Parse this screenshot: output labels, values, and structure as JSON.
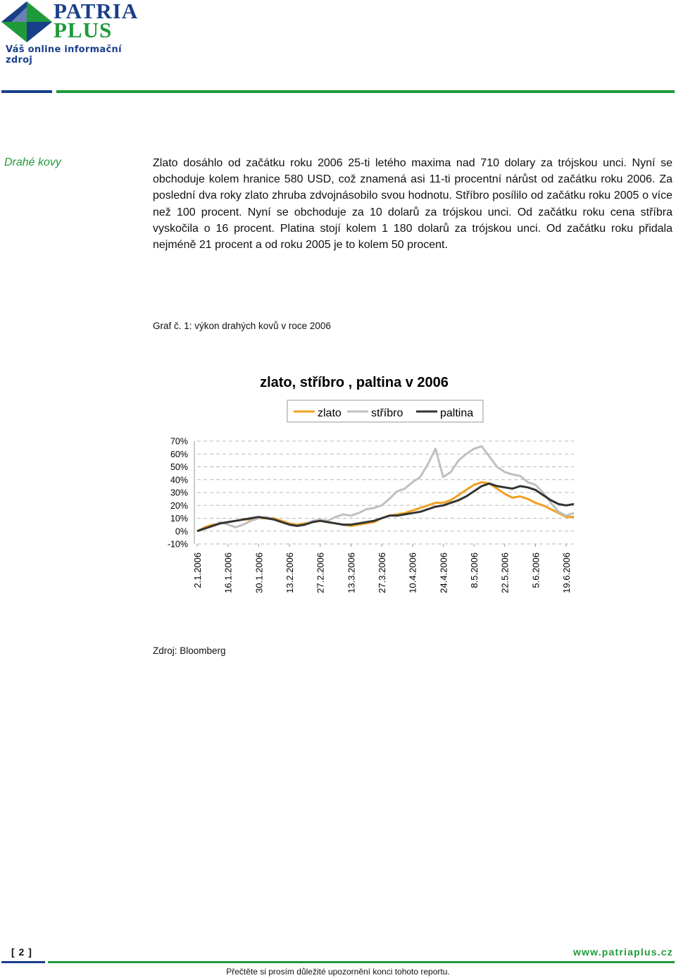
{
  "logo": {
    "line1": "PATRIA",
    "line2": "PLUS",
    "tagline": "Váš online informační zdroj"
  },
  "section": {
    "label": "Drahé kovy",
    "text": "Zlato dosáhlo od začátku roku 2006 25-ti letého maxima nad 710 dolary za trójskou unci. Nyní se obchoduje kolem hranice 580 USD, což znamená asi 11-ti procentní nárůst od začátku roku 2006. Za poslední dva roky zlato zhruba zdvojnásobilo svou hodnotu. Stříbro posílilo od začátku roku 2005 o více než 100 procent. Nyní se obchoduje za 10 dolarů za trójskou unci. Od začátku roku cena stříbra vyskočila o 16 procent. Platina stojí kolem 1 180 dolarů za trójskou unci. Od začátku roku přidala nejméně 21 procent a od roku 2005 je to kolem 50 procent."
  },
  "figure": {
    "caption": "Graf č. 1: výkon drahých kovů v roce 2006",
    "source": "Zdroj: Bloomberg"
  },
  "chart_data": {
    "type": "line",
    "title": "zlato, stříbro , paltina v 2006",
    "xlabel": "",
    "ylabel": "",
    "ylim": [
      -0.1,
      0.7
    ],
    "y_ticks": [
      -0.1,
      0,
      0.1,
      0.2,
      0.3,
      0.4,
      0.5,
      0.6,
      0.7
    ],
    "y_tick_labels": [
      "-10%",
      "0%",
      "10%",
      "20%",
      "30%",
      "40%",
      "50%",
      "60%",
      "70%"
    ],
    "x_tick_labels": [
      "2.1.2006",
      "16.1.2006",
      "30.1.2006",
      "13.2.2006",
      "27.2.2006",
      "13.3.2006",
      "27.3.2006",
      "10.4.2006",
      "24.4.2006",
      "8.5.2006",
      "22.5.2006",
      "5.6.2006",
      "19.6.2006"
    ],
    "grid": "horizontal dashed",
    "legend_position": "top-center",
    "x": [
      "2.1.2006",
      "5.1.2006",
      "9.1.2006",
      "12.1.2006",
      "16.1.2006",
      "19.1.2006",
      "23.1.2006",
      "26.1.2006",
      "30.1.2006",
      "2.2.2006",
      "6.2.2006",
      "9.2.2006",
      "13.2.2006",
      "16.2.2006",
      "20.2.2006",
      "23.2.2006",
      "27.2.2006",
      "2.3.2006",
      "6.3.2006",
      "9.3.2006",
      "13.3.2006",
      "16.3.2006",
      "20.3.2006",
      "23.3.2006",
      "27.3.2006",
      "30.3.2006",
      "3.4.2006",
      "6.4.2006",
      "10.4.2006",
      "13.4.2006",
      "17.4.2006",
      "20.4.2006",
      "24.4.2006",
      "27.4.2006",
      "1.5.2006",
      "4.5.2006",
      "8.5.2006",
      "11.5.2006",
      "15.5.2006",
      "18.5.2006",
      "22.5.2006",
      "25.5.2006",
      "29.5.2006",
      "1.6.2006",
      "5.6.2006",
      "8.6.2006",
      "12.6.2006",
      "15.6.2006",
      "19.6.2006",
      "22.6.2006"
    ],
    "series": [
      {
        "name": "zlato",
        "color": "#f0a020",
        "values": [
          0.0,
          0.03,
          0.05,
          0.06,
          0.07,
          0.08,
          0.09,
          0.09,
          0.1,
          0.1,
          0.1,
          0.08,
          0.06,
          0.05,
          0.06,
          0.07,
          0.08,
          0.07,
          0.06,
          0.05,
          0.04,
          0.05,
          0.06,
          0.07,
          0.1,
          0.12,
          0.13,
          0.14,
          0.16,
          0.18,
          0.2,
          0.22,
          0.22,
          0.24,
          0.28,
          0.32,
          0.36,
          0.38,
          0.37,
          0.33,
          0.29,
          0.26,
          0.27,
          0.25,
          0.22,
          0.2,
          0.17,
          0.14,
          0.11,
          0.11
        ]
      },
      {
        "name": "stříbro",
        "color": "#c0c0c0",
        "values": [
          0.0,
          0.02,
          0.04,
          0.07,
          0.05,
          0.03,
          0.05,
          0.08,
          0.1,
          0.11,
          0.09,
          0.07,
          0.05,
          0.04,
          0.05,
          0.08,
          0.09,
          0.08,
          0.11,
          0.13,
          0.12,
          0.14,
          0.17,
          0.18,
          0.2,
          0.25,
          0.31,
          0.33,
          0.38,
          0.42,
          0.52,
          0.64,
          0.42,
          0.46,
          0.55,
          0.6,
          0.64,
          0.66,
          0.58,
          0.5,
          0.46,
          0.44,
          0.43,
          0.38,
          0.36,
          0.3,
          0.22,
          0.15,
          0.12,
          0.14
        ]
      },
      {
        "name": "paltina",
        "color": "#333333",
        "values": [
          0.0,
          0.02,
          0.04,
          0.06,
          0.07,
          0.08,
          0.09,
          0.1,
          0.11,
          0.1,
          0.09,
          0.07,
          0.05,
          0.04,
          0.05,
          0.07,
          0.08,
          0.07,
          0.06,
          0.05,
          0.05,
          0.06,
          0.07,
          0.08,
          0.1,
          0.12,
          0.12,
          0.13,
          0.14,
          0.15,
          0.17,
          0.19,
          0.2,
          0.22,
          0.24,
          0.27,
          0.31,
          0.35,
          0.37,
          0.35,
          0.34,
          0.33,
          0.35,
          0.34,
          0.32,
          0.28,
          0.24,
          0.21,
          0.2,
          0.21
        ]
      }
    ]
  },
  "footer": {
    "page_number": "[ 2 ]",
    "url": "www.patriaplus.cz",
    "note": "Přečtěte si prosím důležité upozornění konci tohoto reportu."
  }
}
